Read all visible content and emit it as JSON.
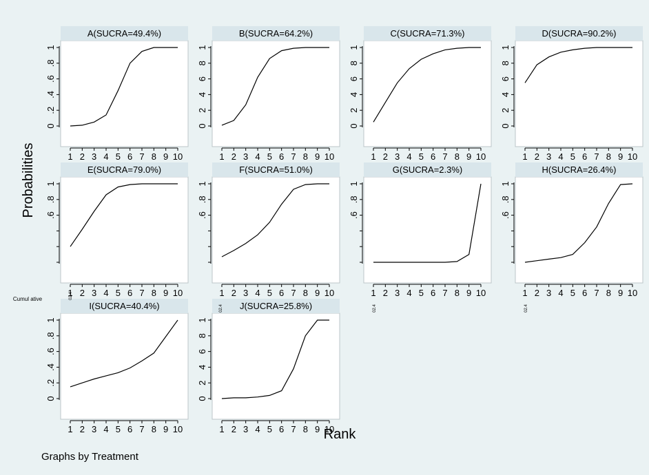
{
  "figure": {
    "ylabel": "Probabilities",
    "xlabel": "Rank",
    "note": "Graphs by Treatment",
    "ylabel_fragment": "Cumul ative",
    "small_fragment": "02.4"
  },
  "chart_data": {
    "type": "line",
    "xlabel": "Rank",
    "ylabel": "Probabilities",
    "xlim": [
      1,
      10
    ],
    "ylim": [
      0,
      1
    ],
    "x": [
      1,
      2,
      3,
      4,
      5,
      6,
      7,
      8,
      9,
      10
    ],
    "panels": [
      {
        "label": "A(SUCRA=49.4%)",
        "values": [
          0.0,
          0.01,
          0.05,
          0.14,
          0.45,
          0.8,
          0.95,
          1.0,
          1.0,
          1.0
        ],
        "yticks": [
          {
            "y": 0,
            "t": "0"
          },
          {
            "y": 0.2,
            "t": ".2"
          },
          {
            "y": 0.4,
            "t": ".4"
          },
          {
            "y": 0.6,
            "t": ".6"
          },
          {
            "y": 0.8,
            "t": ".8"
          },
          {
            "y": 1.0,
            "t": "1"
          }
        ],
        "xticks": [
          "1",
          "2",
          "3",
          "4",
          "5",
          "6",
          "7",
          "8",
          "9",
          "10"
        ]
      },
      {
        "label": "B(SUCRA=64.2%)",
        "values": [
          0.01,
          0.07,
          0.27,
          0.62,
          0.86,
          0.96,
          0.99,
          1.0,
          1.0,
          1.0
        ],
        "yticks": [
          {
            "y": 0,
            "t": "0"
          },
          {
            "y": 0.2,
            "t": "2"
          },
          {
            "y": 0.4,
            "t": "4"
          },
          {
            "y": 0.6,
            "t": "6"
          },
          {
            "y": 0.8,
            "t": "8"
          },
          {
            "y": 1.0,
            "t": "1"
          }
        ],
        "xticks": [
          "1",
          "2",
          "3",
          "4",
          "5",
          "6",
          "7",
          "8",
          "9",
          "10"
        ]
      },
      {
        "label": "C(SUCRA=71.3%)",
        "values": [
          0.05,
          0.3,
          0.55,
          0.73,
          0.85,
          0.92,
          0.97,
          0.99,
          1.0,
          1.0
        ],
        "yticks": [
          {
            "y": 0,
            "t": "0"
          },
          {
            "y": 0.2,
            "t": "2"
          },
          {
            "y": 0.4,
            "t": "4"
          },
          {
            "y": 0.6,
            "t": "6"
          },
          {
            "y": 0.8,
            "t": "8"
          },
          {
            "y": 1.0,
            "t": "1"
          }
        ],
        "xticks": [
          "1",
          "2",
          "3",
          "4",
          "5",
          "6",
          "7",
          "8",
          "9",
          "10"
        ]
      },
      {
        "label": "D(SUCRA=90.2%)",
        "values": [
          0.55,
          0.78,
          0.88,
          0.94,
          0.97,
          0.99,
          1.0,
          1.0,
          1.0,
          1.0
        ],
        "yticks": [
          {
            "y": 0,
            "t": "0"
          },
          {
            "y": 0.2,
            "t": "2"
          },
          {
            "y": 0.4,
            "t": "4"
          },
          {
            "y": 0.6,
            "t": "6"
          },
          {
            "y": 0.8,
            "t": "8"
          },
          {
            "y": 1.0,
            "t": "1"
          }
        ],
        "xticks": [
          "1",
          "2",
          "3",
          "4",
          "5",
          "6",
          "7",
          "8",
          "9",
          "10"
        ]
      },
      {
        "label": "E(SUCRA=79.0%)",
        "values": [
          0.2,
          0.42,
          0.65,
          0.86,
          0.96,
          0.99,
          1.0,
          1.0,
          1.0,
          1.0
        ],
        "yticks": [
          {
            "y": 0.6,
            "t": ".6"
          },
          {
            "y": 0.8,
            "t": ".8"
          },
          {
            "y": 1.0,
            "t": "1"
          }
        ],
        "xticks": [
          "1",
          "2",
          "3",
          "4",
          "5",
          "6",
          "7",
          "8",
          "9",
          "10"
        ]
      },
      {
        "label": "F(SUCRA=51.0%)",
        "values": [
          0.07,
          0.15,
          0.24,
          0.35,
          0.51,
          0.74,
          0.93,
          0.99,
          1.0,
          1.0
        ],
        "yticks": [
          {
            "y": 0.6,
            "t": ".6"
          },
          {
            "y": 0.8,
            "t": ".8"
          },
          {
            "y": 1.0,
            "t": "1"
          }
        ],
        "xticks": [
          "1",
          "2",
          "3",
          "4",
          "5",
          "6",
          "7",
          "8",
          "9",
          "10"
        ]
      },
      {
        "label": "G(SUCRA=2.3%)",
        "values": [
          0.0,
          0.0,
          0.0,
          0.0,
          0.0,
          0.0,
          0.0,
          0.01,
          0.1,
          1.0
        ],
        "yticks": [
          {
            "y": 0.6,
            "t": ".6"
          },
          {
            "y": 0.8,
            "t": ".8"
          },
          {
            "y": 1.0,
            "t": "1"
          }
        ],
        "xticks": [
          "1",
          "2",
          "3",
          "4",
          "5",
          "6",
          "7",
          "8",
          "9",
          "10"
        ]
      },
      {
        "label": "H(SUCRA=26.4%)",
        "values": [
          0.0,
          0.02,
          0.04,
          0.06,
          0.1,
          0.25,
          0.45,
          0.75,
          0.99,
          1.0
        ],
        "yticks": [
          {
            "y": 0.6,
            "t": ".6"
          },
          {
            "y": 0.8,
            "t": ".8"
          },
          {
            "y": 1.0,
            "t": "1"
          }
        ],
        "xticks": [
          "1",
          "2",
          "3",
          "4",
          "5",
          "6",
          "7",
          "8",
          "9",
          "10"
        ]
      },
      {
        "label": "I(SUCRA=40.4%)",
        "values": [
          0.15,
          0.2,
          0.25,
          0.29,
          0.33,
          0.39,
          0.48,
          0.58,
          0.79,
          1.0
        ],
        "yticks": [
          {
            "y": 0,
            "t": "0"
          },
          {
            "y": 0.2,
            "t": ".2"
          },
          {
            "y": 0.4,
            "t": ".4"
          },
          {
            "y": 0.6,
            "t": ".6"
          },
          {
            "y": 0.8,
            "t": ".8"
          },
          {
            "y": 1.0,
            "t": "1"
          }
        ],
        "xticks": [
          "1",
          "2",
          "3",
          "4",
          "5",
          "6",
          "7",
          "8",
          "9",
          "10"
        ]
      },
      {
        "label": "J(SUCRA=25.8%)",
        "values": [
          0.0,
          0.01,
          0.01,
          0.02,
          0.04,
          0.1,
          0.38,
          0.8,
          1.0,
          1.0
        ],
        "yticks": [
          {
            "y": 0,
            "t": "0"
          },
          {
            "y": 0.2,
            "t": "2"
          },
          {
            "y": 0.4,
            "t": "4"
          },
          {
            "y": 0.6,
            "t": "6"
          },
          {
            "y": 0.8,
            "t": "8"
          },
          {
            "y": 1.0,
            "t": "1"
          }
        ],
        "xticks": [
          "1",
          "2",
          "3",
          "4",
          "5",
          "6",
          "7",
          "8",
          "9",
          "10"
        ]
      }
    ]
  }
}
